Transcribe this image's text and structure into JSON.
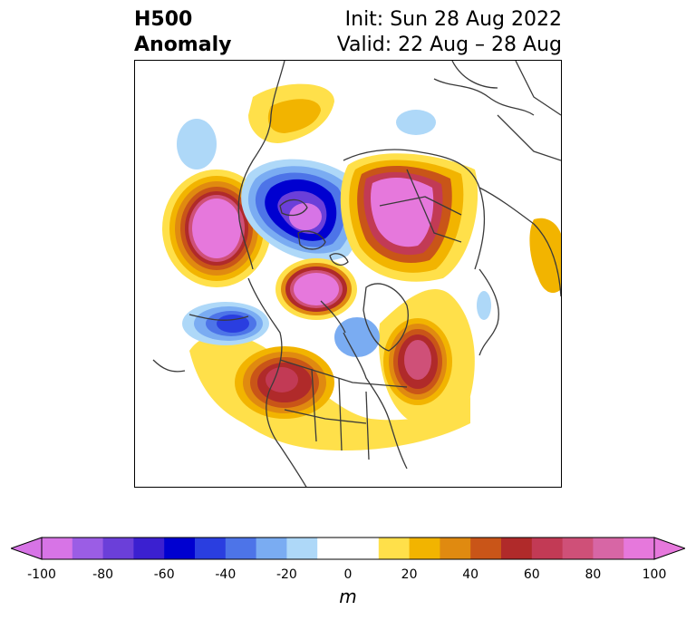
{
  "title": {
    "left_line1": "H500",
    "left_line2": "Anomaly",
    "right_line1": "Init: Sun 28 Aug 2022",
    "right_line2": "Valid: 22 Aug – 28 Aug"
  },
  "colorbar": {
    "unit": "m",
    "ticks": [
      "-100",
      "-80",
      "-60",
      "-40",
      "-20",
      "0",
      "20",
      "40",
      "60",
      "80",
      "100"
    ],
    "range": [
      -100,
      100
    ],
    "interval": 10,
    "extend": "both",
    "colors": [
      "#d774e6",
      "#9b5de5",
      "#6b3fd9",
      "#3b20d0",
      "#0000d0",
      "#2a3ee0",
      "#4d74e8",
      "#7aacf2",
      "#aed8f8",
      "#ffffff",
      "#ffffff",
      "#ffe04a",
      "#f2b400",
      "#e08a10",
      "#c95518",
      "#b02a2a",
      "#c23a55",
      "#cf5078",
      "#d766a5",
      "#e678dc"
    ]
  },
  "map": {
    "projection": "polar-stereographic",
    "region": "North America / North Pole",
    "anomaly_centers": [
      {
        "label": "positive",
        "region": "NE Pacific",
        "value": 90
      },
      {
        "label": "negative",
        "region": "Arctic north of Alaska",
        "value": -80
      },
      {
        "label": "positive",
        "region": "Siberia / Arctic",
        "value": 90
      },
      {
        "label": "positive",
        "region": "Beaufort",
        "value": 90
      },
      {
        "label": "negative",
        "region": "Gulf of Alaska",
        "value": -60
      },
      {
        "label": "positive",
        "region": "Western North America",
        "value": 70
      },
      {
        "label": "positive",
        "region": "North Atlantic",
        "value": 70
      }
    ]
  }
}
